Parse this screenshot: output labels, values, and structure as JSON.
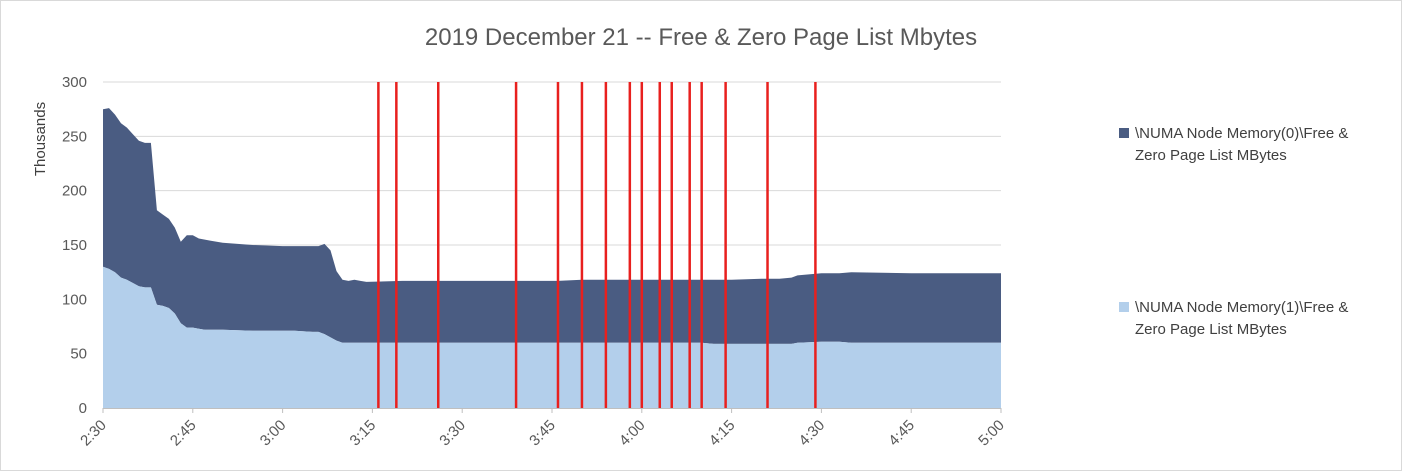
{
  "chart_data": {
    "type": "area",
    "stacked": true,
    "title": "2019 December 21 -- Free & Zero Page List Mbytes",
    "ylabel": "Thousands",
    "ylim": [
      0,
      300
    ],
    "yticks": [
      0,
      50,
      100,
      150,
      200,
      250,
      300
    ],
    "xlim_minutes": [
      150,
      300
    ],
    "xtick_labels": [
      "2:30",
      "2:45",
      "3:00",
      "3:15",
      "3:30",
      "3:45",
      "4:00",
      "4:15",
      "4:30",
      "4:45",
      "5:00"
    ],
    "grid": "horizontal",
    "legend_position": "right",
    "series": [
      {
        "name": "\\NUMA Node Memory(0)\\Free & Zero Page List MBytes",
        "color": "#4a5c82",
        "x": [
          "2:30",
          "2:31",
          "2:32",
          "2:33",
          "2:34",
          "2:35",
          "2:36",
          "2:37",
          "2:38",
          "2:39",
          "2:40",
          "2:41",
          "2:42",
          "2:43",
          "2:44",
          "2:45",
          "2:46",
          "2:47",
          "2:48",
          "2:50",
          "2:55",
          "3:00",
          "3:02",
          "3:05",
          "3:06",
          "3:07",
          "3:08",
          "3:09",
          "3:10",
          "3:11",
          "3:12",
          "3:13",
          "3:14",
          "3:20",
          "3:30",
          "3:40",
          "3:46",
          "3:50",
          "3:55",
          "4:00",
          "4:05",
          "4:08",
          "4:10",
          "4:12",
          "4:13",
          "4:15",
          "4:20",
          "4:22",
          "4:23",
          "4:25",
          "4:26",
          "4:30",
          "4:31",
          "4:32",
          "4:33",
          "4:35",
          "4:45",
          "5:00"
        ],
        "values": [
          145,
          148,
          145,
          142,
          140,
          137,
          134,
          133,
          133,
          87,
          84,
          82,
          79,
          75,
          85,
          85,
          83,
          83,
          82,
          80,
          79,
          78,
          78,
          79,
          79,
          83,
          80,
          64,
          58,
          57,
          58,
          57,
          56,
          57,
          57,
          57,
          57,
          58,
          58,
          58,
          58,
          58,
          58,
          59,
          59,
          59,
          60,
          60,
          60,
          61,
          62,
          63,
          63,
          63,
          63,
          65,
          64,
          64
        ]
      },
      {
        "name": "\\NUMA Node Memory(1)\\Free & Zero Page List MBytes",
        "color": "#b3cfeb",
        "x": [
          "2:30",
          "2:31",
          "2:32",
          "2:33",
          "2:34",
          "2:35",
          "2:36",
          "2:37",
          "2:38",
          "2:39",
          "2:40",
          "2:41",
          "2:42",
          "2:43",
          "2:44",
          "2:45",
          "2:46",
          "2:47",
          "2:48",
          "2:50",
          "2:55",
          "3:00",
          "3:02",
          "3:05",
          "3:06",
          "3:07",
          "3:08",
          "3:09",
          "3:10",
          "3:11",
          "3:12",
          "3:13",
          "3:14",
          "3:20",
          "3:30",
          "3:40",
          "3:46",
          "3:50",
          "3:55",
          "4:00",
          "4:05",
          "4:08",
          "4:10",
          "4:12",
          "4:13",
          "4:15",
          "4:20",
          "4:22",
          "4:23",
          "4:25",
          "4:26",
          "4:30",
          "4:31",
          "4:32",
          "4:33",
          "4:35",
          "4:45",
          "5:00"
        ],
        "values": [
          130,
          128,
          125,
          120,
          118,
          115,
          112,
          111,
          111,
          95,
          94,
          92,
          87,
          78,
          74,
          74,
          73,
          72,
          72,
          72,
          71,
          71,
          71,
          70,
          70,
          68,
          65,
          62,
          60,
          60,
          60,
          60,
          60,
          60,
          60,
          60,
          60,
          60,
          60,
          60,
          60,
          60,
          60,
          59,
          59,
          59,
          59,
          59,
          59,
          59,
          60,
          61,
          61,
          61,
          61,
          60,
          60,
          60
        ]
      }
    ],
    "annotations": {
      "vertical_lines_x": [
        "3:16",
        "3:19",
        "3:26",
        "3:39",
        "3:46",
        "3:50",
        "3:54",
        "3:58",
        "4:00",
        "4:03",
        "4:05",
        "4:08",
        "4:10",
        "4:14",
        "4:21",
        "4:29"
      ],
      "color": "#e8201e"
    }
  }
}
